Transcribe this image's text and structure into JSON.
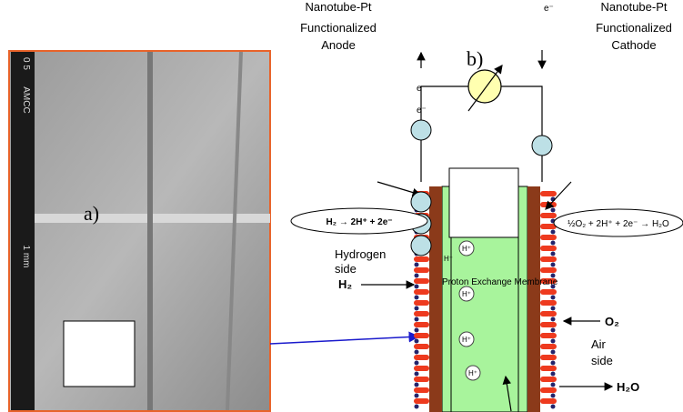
{
  "anode_label": [
    "Nanotube-Pt",
    "Functionalized",
    "Anode"
  ],
  "cathode_label": [
    "Nanotube-Pt",
    "Functionalized",
    "Cathode"
  ],
  "electron_top": "e⁻",
  "electron_wire": [
    "e⁻",
    "e⁻"
  ],
  "panel_b": "b)",
  "panel_a": "a)",
  "scale_labels": [
    "0 5",
    "AMCC",
    "1 mm"
  ],
  "anode_reaction": "H₂ → 2H⁺ + 2e⁻",
  "cathode_reaction": "½O₂ + 2H⁺ + 2e⁻ → H₂O",
  "hydrogen_side": [
    "Hydrogen",
    "side"
  ],
  "h2": "H₂",
  "membrane": "Proton Exchange Membrane",
  "protons": [
    "H⁺",
    "H⁺",
    "H⁺",
    "H⁺",
    "H⁺"
  ],
  "o2": "O₂",
  "air_side": [
    "Air",
    "side"
  ],
  "h2o": "H₂O"
}
